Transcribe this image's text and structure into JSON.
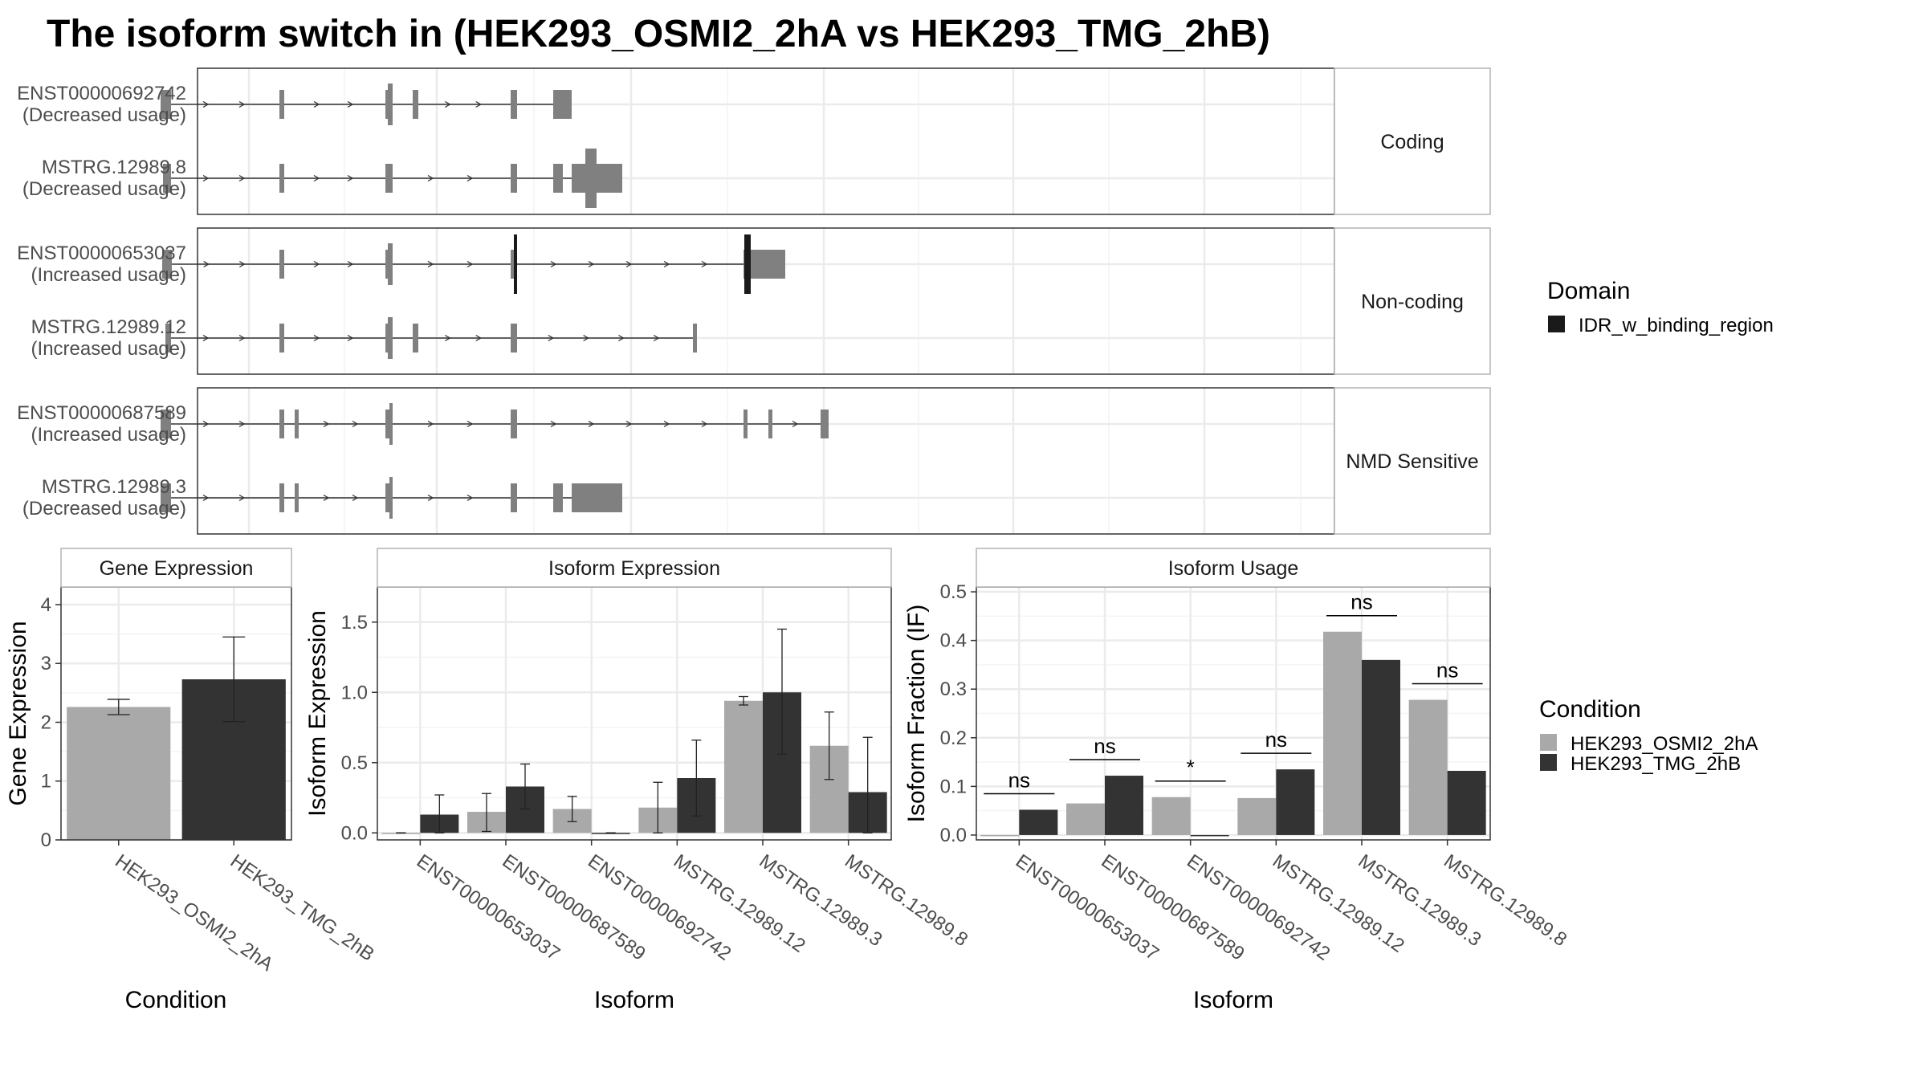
{
  "title": "The isoform switch in  (HEK293_OSMI2_2hA vs HEK293_TMG_2hB)",
  "colors": {
    "exon": "#808080",
    "domain": "#1a1a1a",
    "cond1": "#a9a9a9",
    "cond2": "#333333",
    "grid": "#ebebeb",
    "strip_bg": "#ffffff",
    "text": "#4d4d4d"
  },
  "structure": {
    "facets": [
      {
        "label": "Coding",
        "transcripts": [
          {
            "id": "ENST00000692742",
            "usage": "(Decreased usage)",
            "exons": [
              [
                200,
                213
              ],
              [
                348,
                354
              ],
              [
                480,
                483
              ],
              [
                483,
                489
              ],
              [
                514,
                521
              ],
              [
                636,
                644
              ],
              [
                689,
                696
              ],
              [
                696,
                712
              ]
            ],
            "domains": []
          },
          {
            "id": "MSTRG.12989.8",
            "usage": "(Decreased usage)",
            "exons": [
              [
                203,
                213
              ],
              [
                348,
                354
              ],
              [
                480,
                489
              ],
              [
                636,
                644
              ],
              [
                689,
                701
              ],
              [
                712,
                729
              ],
              [
                729,
                743
              ],
              [
                743,
                775
              ]
            ],
            "domains": []
          }
        ]
      },
      {
        "label": "Non-coding",
        "transcripts": [
          {
            "id": "ENST00000653037",
            "usage": "(Increased usage)",
            "exons": [
              [
                202,
                214
              ],
              [
                348,
                354
              ],
              [
                480,
                483
              ],
              [
                483,
                489
              ],
              [
                636,
                639
              ],
              [
                639,
                644
              ],
              [
                926,
                929
              ],
              [
                929,
                936
              ],
              [
                936,
                978
              ]
            ],
            "domains": [
              [
                640,
                644
              ],
              [
                927,
                935
              ]
            ]
          },
          {
            "id": "MSTRG.12989.12",
            "usage": "(Increased usage)",
            "exons": [
              [
                206,
                213
              ],
              [
                348,
                354
              ],
              [
                480,
                483
              ],
              [
                483,
                489
              ],
              [
                514,
                521
              ],
              [
                636,
                644
              ],
              [
                863,
                868
              ]
            ],
            "domains": []
          }
        ]
      },
      {
        "label": "NMD Sensitive",
        "transcripts": [
          {
            "id": "ENST00000687589",
            "usage": "(Increased usage)",
            "exons": [
              [
                200,
                213
              ],
              [
                348,
                354
              ],
              [
                367,
                372
              ],
              [
                480,
                485
              ],
              [
                485,
                489
              ],
              [
                636,
                644
              ],
              [
                926,
                931
              ],
              [
                957,
                962
              ],
              [
                1022,
                1032
              ]
            ],
            "domains": []
          },
          {
            "id": "MSTRG.12989.3",
            "usage": "(Decreased usage)",
            "exons": [
              [
                200,
                213
              ],
              [
                348,
                354
              ],
              [
                367,
                372
              ],
              [
                480,
                485
              ],
              [
                485,
                489
              ],
              [
                636,
                644
              ],
              [
                689,
                701
              ],
              [
                712,
                775
              ]
            ],
            "domains": []
          }
        ]
      }
    ],
    "legend_title": "Domain",
    "legend_items": [
      "IDR_w_binding_region"
    ]
  },
  "chart_data": [
    {
      "type": "bar",
      "title": "Gene Expression",
      "xlabel": "Condition",
      "ylabel": "Gene Expression",
      "ylim": [
        0,
        4.3
      ],
      "yticks": [
        0,
        1,
        2,
        3,
        4
      ],
      "categories": [
        "HEK293_OSMI2_2hA",
        "HEK293_TMG_2hB"
      ],
      "values": [
        2.26,
        2.73
      ],
      "err_low": [
        2.13,
        2.01
      ],
      "err_high": [
        2.39,
        3.45
      ]
    },
    {
      "type": "bar",
      "title": "Isoform Expression",
      "xlabel": "Isoform",
      "ylabel": "Isoform Expression",
      "ylim": [
        -0.05,
        1.75
      ],
      "yticks": [
        0.0,
        0.5,
        1.0,
        1.5
      ],
      "ytick_labels": [
        "0.0",
        "0.5",
        "1.0",
        "1.5"
      ],
      "categories": [
        "ENST00000653037",
        "ENST00000687589",
        "ENST00000692742",
        "MSTRG.12989.12",
        "MSTRG.12989.3",
        "MSTRG.12989.8"
      ],
      "series": [
        {
          "name": "HEK293_OSMI2_2hA",
          "values": [
            0.0,
            0.15,
            0.17,
            0.18,
            0.94,
            0.62
          ],
          "err_low": [
            0.0,
            0.01,
            0.08,
            0.0,
            0.91,
            0.38
          ],
          "err_high": [
            0.0,
            0.28,
            0.26,
            0.36,
            0.97,
            0.86
          ]
        },
        {
          "name": "HEK293_TMG_2hB",
          "values": [
            0.13,
            0.33,
            0.0,
            0.39,
            1.0,
            0.29
          ],
          "err_low": [
            0.0,
            0.17,
            0.0,
            0.12,
            0.56,
            0.0
          ],
          "err_high": [
            0.27,
            0.49,
            0.0,
            0.66,
            1.45,
            0.68
          ]
        }
      ]
    },
    {
      "type": "bar",
      "title": "Isoform Usage",
      "xlabel": "Isoform",
      "ylabel": "Isoform Fraction (IF)",
      "ylim": [
        -0.01,
        0.51
      ],
      "yticks": [
        0.0,
        0.1,
        0.2,
        0.3,
        0.4,
        0.5
      ],
      "ytick_labels": [
        "0.0",
        "0.1",
        "0.2",
        "0.3",
        "0.4",
        "0.5"
      ],
      "categories": [
        "ENST00000653037",
        "ENST00000687589",
        "ENST00000692742",
        "MSTRG.12989.12",
        "MSTRG.12989.3",
        "MSTRG.12989.8"
      ],
      "series": [
        {
          "name": "HEK293_OSMI2_2hA",
          "values": [
            0.0,
            0.065,
            0.078,
            0.076,
            0.418,
            0.278
          ]
        },
        {
          "name": "HEK293_TMG_2hB",
          "values": [
            0.052,
            0.122,
            0.0,
            0.135,
            0.36,
            0.132
          ]
        }
      ],
      "significance": [
        "ns",
        "ns",
        "*",
        "ns",
        "ns",
        "ns"
      ]
    }
  ],
  "condition_legend": {
    "title": "Condition",
    "items": [
      "HEK293_OSMI2_2hA",
      "HEK293_TMG_2hB"
    ]
  }
}
